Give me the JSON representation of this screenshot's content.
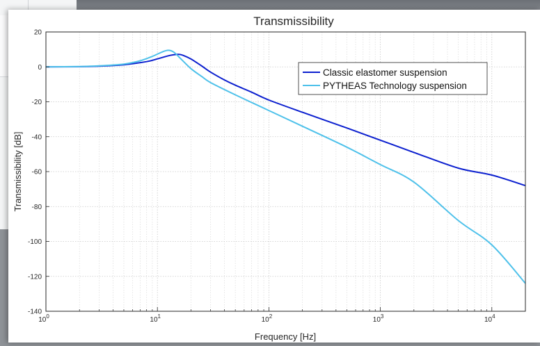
{
  "chart_data": {
    "type": "line",
    "title": "Transmissibility",
    "xlabel": "Frequency [Hz]",
    "ylabel": "Transmissibility [dB]",
    "xscale": "log",
    "xlim": [
      1,
      20000
    ],
    "ylim": [
      -140,
      20
    ],
    "yticks": [
      20,
      0,
      -20,
      -40,
      -60,
      -80,
      -100,
      -120,
      -140
    ],
    "xticks": [
      {
        "value": 1,
        "base": "10",
        "exp": "0"
      },
      {
        "value": 10,
        "base": "10",
        "exp": "1"
      },
      {
        "value": 100,
        "base": "10",
        "exp": "2"
      },
      {
        "value": 1000,
        "base": "10",
        "exp": "3"
      },
      {
        "value": 10000,
        "base": "10",
        "exp": "4"
      }
    ],
    "grid": "on (major and minor, dotted)",
    "legend_position": "top-right",
    "series": [
      {
        "name": "Classic elastomer suspension",
        "color": "#0b1fcf",
        "points": [
          [
            1,
            0
          ],
          [
            2,
            0.1
          ],
          [
            3,
            0.4
          ],
          [
            5,
            1.2
          ],
          [
            8,
            3
          ],
          [
            10,
            4.6
          ],
          [
            13,
            6.6
          ],
          [
            15.5,
            7.2
          ],
          [
            17,
            6.6
          ],
          [
            20,
            4.5
          ],
          [
            25,
            0.5
          ],
          [
            30,
            -3
          ],
          [
            40,
            -7.5
          ],
          [
            50,
            -10.5
          ],
          [
            70,
            -14.5
          ],
          [
            100,
            -19
          ],
          [
            200,
            -26
          ],
          [
            500,
            -35
          ],
          [
            1000,
            -42
          ],
          [
            2000,
            -49
          ],
          [
            5000,
            -58
          ],
          [
            10000,
            -62
          ],
          [
            20000,
            -68
          ]
        ]
      },
      {
        "name": "PYTHEAS Technology suspension",
        "color": "#4ec1ea",
        "points": [
          [
            1,
            0
          ],
          [
            2,
            0.2
          ],
          [
            3,
            0.6
          ],
          [
            5,
            1.6
          ],
          [
            7,
            3.5
          ],
          [
            9,
            6
          ],
          [
            11,
            8.5
          ],
          [
            12.5,
            9.5
          ],
          [
            14,
            8.5
          ],
          [
            16,
            5
          ],
          [
            20,
            -1
          ],
          [
            25,
            -5.5
          ],
          [
            30,
            -9
          ],
          [
            50,
            -16
          ],
          [
            100,
            -25
          ],
          [
            200,
            -34
          ],
          [
            500,
            -46
          ],
          [
            1000,
            -56
          ],
          [
            2000,
            -66
          ],
          [
            5000,
            -88
          ],
          [
            10000,
            -102
          ],
          [
            20000,
            -124
          ]
        ]
      }
    ]
  }
}
